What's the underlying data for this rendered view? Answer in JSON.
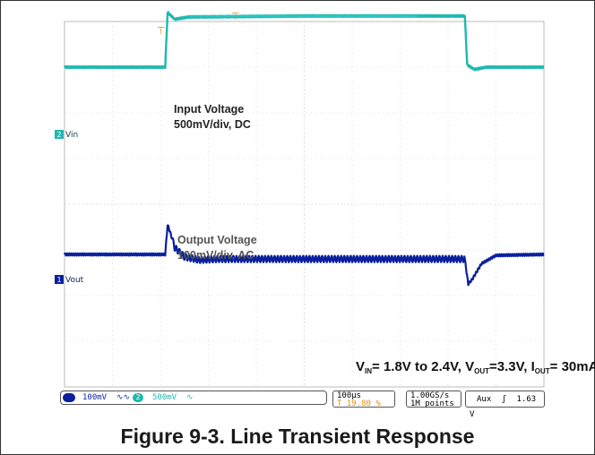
{
  "chart_data": {
    "type": "line",
    "title": "Figure 9-3. Line Transient Response",
    "conditions": {
      "v": "V",
      "in": "IN",
      "text1": "= 1.8V to 2.4V, V",
      "out": "OUT",
      "text2": "=3.3V, I",
      "out2": "OUT",
      "text3": "= 30mA"
    },
    "x_divisions": 10,
    "y_divisions": 8,
    "grid": true,
    "series": [
      {
        "name": "Vin",
        "channel": "2",
        "color": "#1fb8b0",
        "label_line1": "Input Voltage",
        "label_line2": "500mV/div, DC",
        "x": [
          0,
          2.1,
          2.15,
          2.3,
          2.6,
          5.0,
          8.0,
          8.35,
          8.4,
          8.55,
          8.8,
          10
        ],
        "y": [
          3.0,
          3.0,
          4.2,
          4.05,
          4.1,
          4.12,
          4.12,
          4.12,
          3.05,
          2.95,
          3.0,
          3.0
        ]
      },
      {
        "name": "Vout",
        "channel": "1",
        "color": "#0a1f9e",
        "label_line1": "Output Voltage",
        "label_line2": "100mV/div, AC",
        "x": [
          0,
          2.1,
          2.15,
          2.2,
          2.3,
          2.5,
          2.8,
          3.2,
          8.35,
          8.42,
          8.5,
          8.7,
          9.0,
          10
        ],
        "y": [
          -1.1,
          -1.1,
          -0.45,
          -0.6,
          -0.95,
          -1.15,
          -1.22,
          -1.2,
          -1.2,
          -1.75,
          -1.65,
          -1.3,
          -1.12,
          -1.1
        ]
      }
    ]
  },
  "status": {
    "ch1_scale": "100mV",
    "ch1_coupling_icon": "wave-icon",
    "ch2_badge": "2",
    "ch2_scale": "500mV",
    "timebase": "100µs",
    "trig_pos": "19.80 %",
    "sample_rate": "1.00GS/s",
    "record_length": "1M points",
    "trigger_source": "Aux",
    "trigger_slope": "rising-edge-icon",
    "trigger_level": "1.63 V"
  }
}
